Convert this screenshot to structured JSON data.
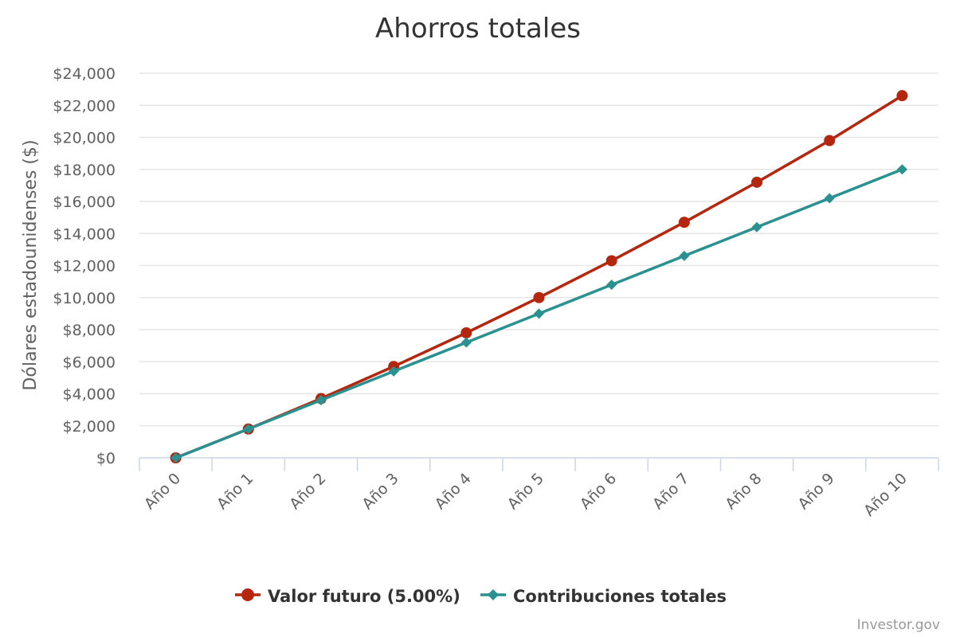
{
  "chart_data": {
    "type": "line",
    "title": "Ahorros totales",
    "ylabel": "Dólares estadounidenses ($)",
    "xlabel": "",
    "categories": [
      "Año 0",
      "Año 1",
      "Año 2",
      "Año 3",
      "Año 4",
      "Año 5",
      "Año 6",
      "Año 7",
      "Año 8",
      "Año 9",
      "Año 10"
    ],
    "ylim": [
      0,
      24000
    ],
    "yticks": [
      0,
      2000,
      4000,
      6000,
      8000,
      10000,
      12000,
      14000,
      16000,
      18000,
      20000,
      22000,
      24000
    ],
    "ytick_labels": [
      "$0",
      "$2,000",
      "$4,000",
      "$6,000",
      "$8,000",
      "$10,000",
      "$12,000",
      "$14,000",
      "$16,000",
      "$18,000",
      "$20,000",
      "$22,000",
      "$24,000"
    ],
    "grid": true,
    "legend_position": "bottom-center",
    "series": [
      {
        "name": "Valor futuro (5.00%)",
        "color": "#b5260f",
        "marker": "circle",
        "values": [
          0,
          1800,
          3700,
          5700,
          7800,
          10000,
          12300,
          14700,
          17200,
          19800,
          22600
        ]
      },
      {
        "name": "Contribuciones totales",
        "color": "#2a9090",
        "marker": "diamond",
        "values": [
          0,
          1800,
          3600,
          5400,
          7200,
          9000,
          10800,
          12600,
          14400,
          16200,
          18000
        ]
      }
    ]
  },
  "credit": "Investor.gov"
}
